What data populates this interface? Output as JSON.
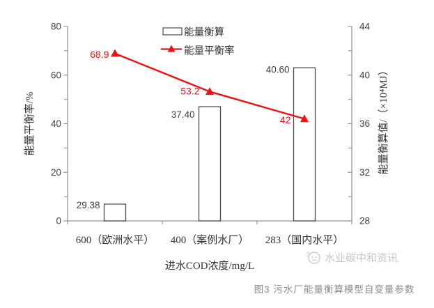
{
  "chart_data": {
    "type": "bar+line combo",
    "categories": [
      "600（欧洲水平）",
      "400（案例水厂）",
      "283（国内水平）"
    ],
    "series": [
      {
        "name": "能量衡算",
        "type": "bar",
        "axis": "right",
        "values": [
          29.38,
          37.4,
          40.6
        ],
        "point_labels": [
          "29.38",
          "37.40",
          "40.60"
        ],
        "fill": "#ffffff",
        "stroke": "#4a4a4a"
      },
      {
        "name": "能量平衡率",
        "type": "line",
        "axis": "left",
        "values": [
          68.9,
          53.2,
          42
        ],
        "point_labels": [
          "68.9",
          "53.2",
          "42"
        ],
        "color": "#ee1111",
        "marker": "triangle"
      }
    ],
    "left_axis": {
      "title": "能量平衡率/%",
      "min": 0,
      "max": 80,
      "major_ticks": [
        0,
        20,
        40,
        60,
        80
      ],
      "tick_labels": [
        "0",
        "20",
        "40",
        "60",
        "80"
      ],
      "minor_step": 10
    },
    "right_axis": {
      "title": "能量衡算值/（×10⁴MJ）",
      "min": 28,
      "max": 44,
      "major_ticks": [
        28,
        32,
        36,
        40,
        44
      ],
      "tick_labels": [
        "28",
        "32",
        "36",
        "40",
        "44"
      ],
      "minor_step": 2
    },
    "x_axis": {
      "title": "进水COD浓度/mg/L"
    },
    "legend": {
      "position": "top-center",
      "entries": [
        "能量衡算",
        "能量平衡率"
      ]
    },
    "grid": false
  },
  "footer": {
    "caption": "图3 污水厂能量衡算模型自变量参数"
  },
  "watermark": {
    "text": "水业碳中和资讯",
    "icon": "waterdrop-face-logo"
  },
  "colors": {
    "red": "#ee1111",
    "axis": "#8f8f8f",
    "bar_stroke": "#4a4a4a",
    "text": "#3f3f3f",
    "caption": "#8a8a8a",
    "watermark": "#c6c6c6",
    "background": "#ffffff"
  }
}
